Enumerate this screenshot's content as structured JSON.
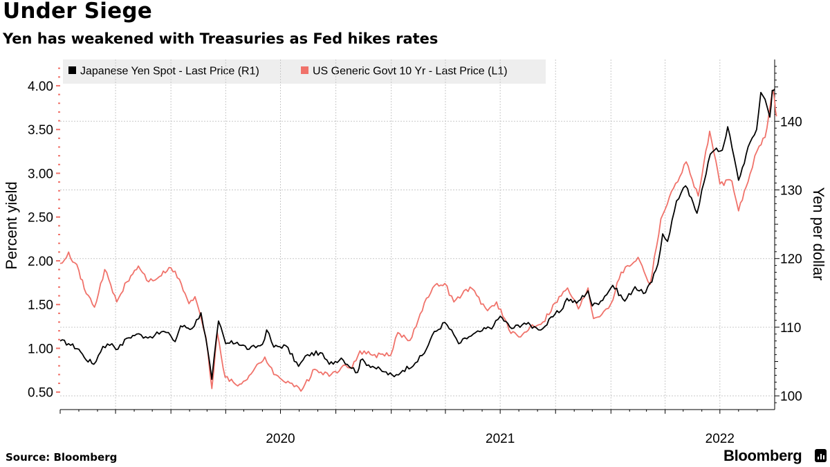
{
  "header": {
    "title": "Under Siege",
    "subtitle": "Yen has weakened with Treasuries as Fed hikes rates"
  },
  "footer": {
    "source": "Source: Bloomberg",
    "brand": "Bloomberg"
  },
  "chart_data": {
    "type": "line",
    "legend_position": "top-left",
    "grid": true,
    "x_ticks": [
      "2020",
      "2021",
      "2022"
    ],
    "x_range": [
      "2019-07-01",
      "2022-09-30"
    ],
    "left_axis": {
      "label": "Percent yield",
      "range": [
        0.3,
        4.3
      ],
      "ticks": [
        "0.50",
        "1.00",
        "1.50",
        "2.00",
        "2.50",
        "3.00",
        "3.50",
        "4.00"
      ]
    },
    "right_axis": {
      "label": "Yen per dollar",
      "range": [
        98,
        149
      ],
      "ticks": [
        "100",
        "110",
        "120",
        "130",
        "140"
      ]
    },
    "series": [
      {
        "name": "Japanese Yen Spot - Last Price (R1)",
        "axis": "right",
        "color": "#000000",
        "points": [
          [
            "2019-07-01",
            108.0
          ],
          [
            "2019-07-15",
            107.6
          ],
          [
            "2019-08-01",
            106.8
          ],
          [
            "2019-08-10",
            105.6
          ],
          [
            "2019-08-26",
            104.6
          ],
          [
            "2019-09-10",
            107.2
          ],
          [
            "2019-09-25",
            107.6
          ],
          [
            "2019-10-05",
            106.8
          ],
          [
            "2019-10-20",
            108.4
          ],
          [
            "2019-11-05",
            109.0
          ],
          [
            "2019-11-20",
            108.6
          ],
          [
            "2019-12-05",
            108.8
          ],
          [
            "2019-12-20",
            109.4
          ],
          [
            "2020-01-01",
            108.7
          ],
          [
            "2020-01-08",
            107.9
          ],
          [
            "2020-01-17",
            110.2
          ],
          [
            "2020-02-05",
            109.8
          ],
          [
            "2020-02-20",
            112.1
          ],
          [
            "2020-02-28",
            108.4
          ],
          [
            "2020-03-09",
            102.4
          ],
          [
            "2020-03-20",
            110.9
          ],
          [
            "2020-04-01",
            107.6
          ],
          [
            "2020-04-20",
            107.8
          ],
          [
            "2020-05-10",
            106.8
          ],
          [
            "2020-06-01",
            107.5
          ],
          [
            "2020-06-08",
            109.6
          ],
          [
            "2020-06-20",
            107.1
          ],
          [
            "2020-07-10",
            107.3
          ],
          [
            "2020-07-31",
            104.3
          ],
          [
            "2020-08-15",
            106.0
          ],
          [
            "2020-09-05",
            106.3
          ],
          [
            "2020-09-20",
            104.6
          ],
          [
            "2020-10-10",
            105.5
          ],
          [
            "2020-11-06",
            103.4
          ],
          [
            "2020-11-11",
            105.2
          ],
          [
            "2020-12-01",
            104.3
          ],
          [
            "2020-12-20",
            103.5
          ],
          [
            "2021-01-06",
            102.8
          ],
          [
            "2021-01-20",
            103.7
          ],
          [
            "2021-02-10",
            104.8
          ],
          [
            "2021-02-25",
            106.2
          ],
          [
            "2021-03-10",
            108.8
          ],
          [
            "2021-03-31",
            110.7
          ],
          [
            "2021-04-15",
            108.9
          ],
          [
            "2021-04-23",
            107.6
          ],
          [
            "2021-05-10",
            108.6
          ],
          [
            "2021-06-01",
            109.5
          ],
          [
            "2021-06-20",
            110.2
          ],
          [
            "2021-07-01",
            111.6
          ],
          [
            "2021-07-20",
            109.8
          ],
          [
            "2021-08-10",
            110.6
          ],
          [
            "2021-08-30",
            109.9
          ],
          [
            "2021-09-10",
            109.8
          ],
          [
            "2021-09-30",
            111.9
          ],
          [
            "2021-10-10",
            112.4
          ],
          [
            "2021-10-20",
            114.2
          ],
          [
            "2021-11-05",
            113.5
          ],
          [
            "2021-11-24",
            115.3
          ],
          [
            "2021-12-01",
            113.1
          ],
          [
            "2021-12-15",
            113.8
          ],
          [
            "2022-01-04",
            116.1
          ],
          [
            "2022-01-24",
            113.8
          ],
          [
            "2022-02-10",
            115.9
          ],
          [
            "2022-02-24",
            114.9
          ],
          [
            "2022-03-10",
            116.6
          ],
          [
            "2022-03-20",
            119.2
          ],
          [
            "2022-03-28",
            123.6
          ],
          [
            "2022-04-05",
            122.5
          ],
          [
            "2022-04-20",
            128.4
          ],
          [
            "2022-05-05",
            130.6
          ],
          [
            "2022-05-24",
            126.6
          ],
          [
            "2022-06-01",
            130.0
          ],
          [
            "2022-06-15",
            135.2
          ],
          [
            "2022-06-22",
            135.8
          ],
          [
            "2022-07-05",
            135.8
          ],
          [
            "2022-07-14",
            139.2
          ],
          [
            "2022-08-01",
            131.4
          ],
          [
            "2022-08-20",
            136.9
          ],
          [
            "2022-08-31",
            138.8
          ],
          [
            "2022-09-07",
            144.2
          ],
          [
            "2022-09-14",
            143.2
          ],
          [
            "2022-09-22",
            140.6
          ],
          [
            "2022-09-26",
            144.5
          ],
          [
            "2022-09-30",
            144.7
          ]
        ]
      },
      {
        "name": "US Generic Govt 10 Yr - Last Price (L1)",
        "axis": "left",
        "color": "#f0726a",
        "points": [
          [
            "2019-07-01",
            1.97
          ],
          [
            "2019-07-15",
            2.1
          ],
          [
            "2019-08-01",
            1.89
          ],
          [
            "2019-08-10",
            1.68
          ],
          [
            "2019-08-27",
            1.47
          ],
          [
            "2019-09-13",
            1.9
          ],
          [
            "2019-10-03",
            1.53
          ],
          [
            "2019-10-20",
            1.76
          ],
          [
            "2019-11-08",
            1.94
          ],
          [
            "2019-11-25",
            1.76
          ],
          [
            "2019-12-13",
            1.82
          ],
          [
            "2020-01-01",
            1.92
          ],
          [
            "2020-01-15",
            1.79
          ],
          [
            "2020-01-31",
            1.51
          ],
          [
            "2020-02-10",
            1.59
          ],
          [
            "2020-02-28",
            1.13
          ],
          [
            "2020-03-09",
            0.54
          ],
          [
            "2020-03-18",
            1.18
          ],
          [
            "2020-03-31",
            0.67
          ],
          [
            "2020-04-21",
            0.57
          ],
          [
            "2020-05-10",
            0.69
          ],
          [
            "2020-06-05",
            0.9
          ],
          [
            "2020-06-20",
            0.7
          ],
          [
            "2020-07-20",
            0.6
          ],
          [
            "2020-08-04",
            0.51
          ],
          [
            "2020-08-27",
            0.76
          ],
          [
            "2020-09-20",
            0.68
          ],
          [
            "2020-10-10",
            0.78
          ],
          [
            "2020-10-28",
            0.78
          ],
          [
            "2020-11-10",
            0.97
          ],
          [
            "2020-12-01",
            0.92
          ],
          [
            "2020-12-31",
            0.92
          ],
          [
            "2021-01-12",
            1.18
          ],
          [
            "2021-02-01",
            1.09
          ],
          [
            "2021-02-25",
            1.52
          ],
          [
            "2021-03-18",
            1.74
          ],
          [
            "2021-03-31",
            1.74
          ],
          [
            "2021-04-15",
            1.53
          ],
          [
            "2021-05-12",
            1.7
          ],
          [
            "2021-06-10",
            1.43
          ],
          [
            "2021-06-25",
            1.53
          ],
          [
            "2021-07-19",
            1.17
          ],
          [
            "2021-08-04",
            1.13
          ],
          [
            "2021-08-20",
            1.25
          ],
          [
            "2021-09-10",
            1.3
          ],
          [
            "2021-09-30",
            1.52
          ],
          [
            "2021-10-21",
            1.69
          ],
          [
            "2021-11-08",
            1.45
          ],
          [
            "2021-11-24",
            1.69
          ],
          [
            "2021-12-03",
            1.34
          ],
          [
            "2021-12-20",
            1.42
          ],
          [
            "2022-01-01",
            1.51
          ],
          [
            "2022-01-18",
            1.87
          ],
          [
            "2022-02-15",
            2.04
          ],
          [
            "2022-03-07",
            1.73
          ],
          [
            "2022-03-25",
            2.48
          ],
          [
            "2022-04-15",
            2.83
          ],
          [
            "2022-05-06",
            3.13
          ],
          [
            "2022-05-26",
            2.74
          ],
          [
            "2022-06-14",
            3.48
          ],
          [
            "2022-07-01",
            2.88
          ],
          [
            "2022-07-21",
            2.91
          ],
          [
            "2022-08-01",
            2.57
          ],
          [
            "2022-08-20",
            2.99
          ],
          [
            "2022-09-01",
            3.26
          ],
          [
            "2022-09-14",
            3.41
          ],
          [
            "2022-09-27",
            3.95
          ],
          [
            "2022-09-30",
            3.83
          ],
          [
            "2022-10-03",
            3.65
          ]
        ]
      }
    ]
  }
}
